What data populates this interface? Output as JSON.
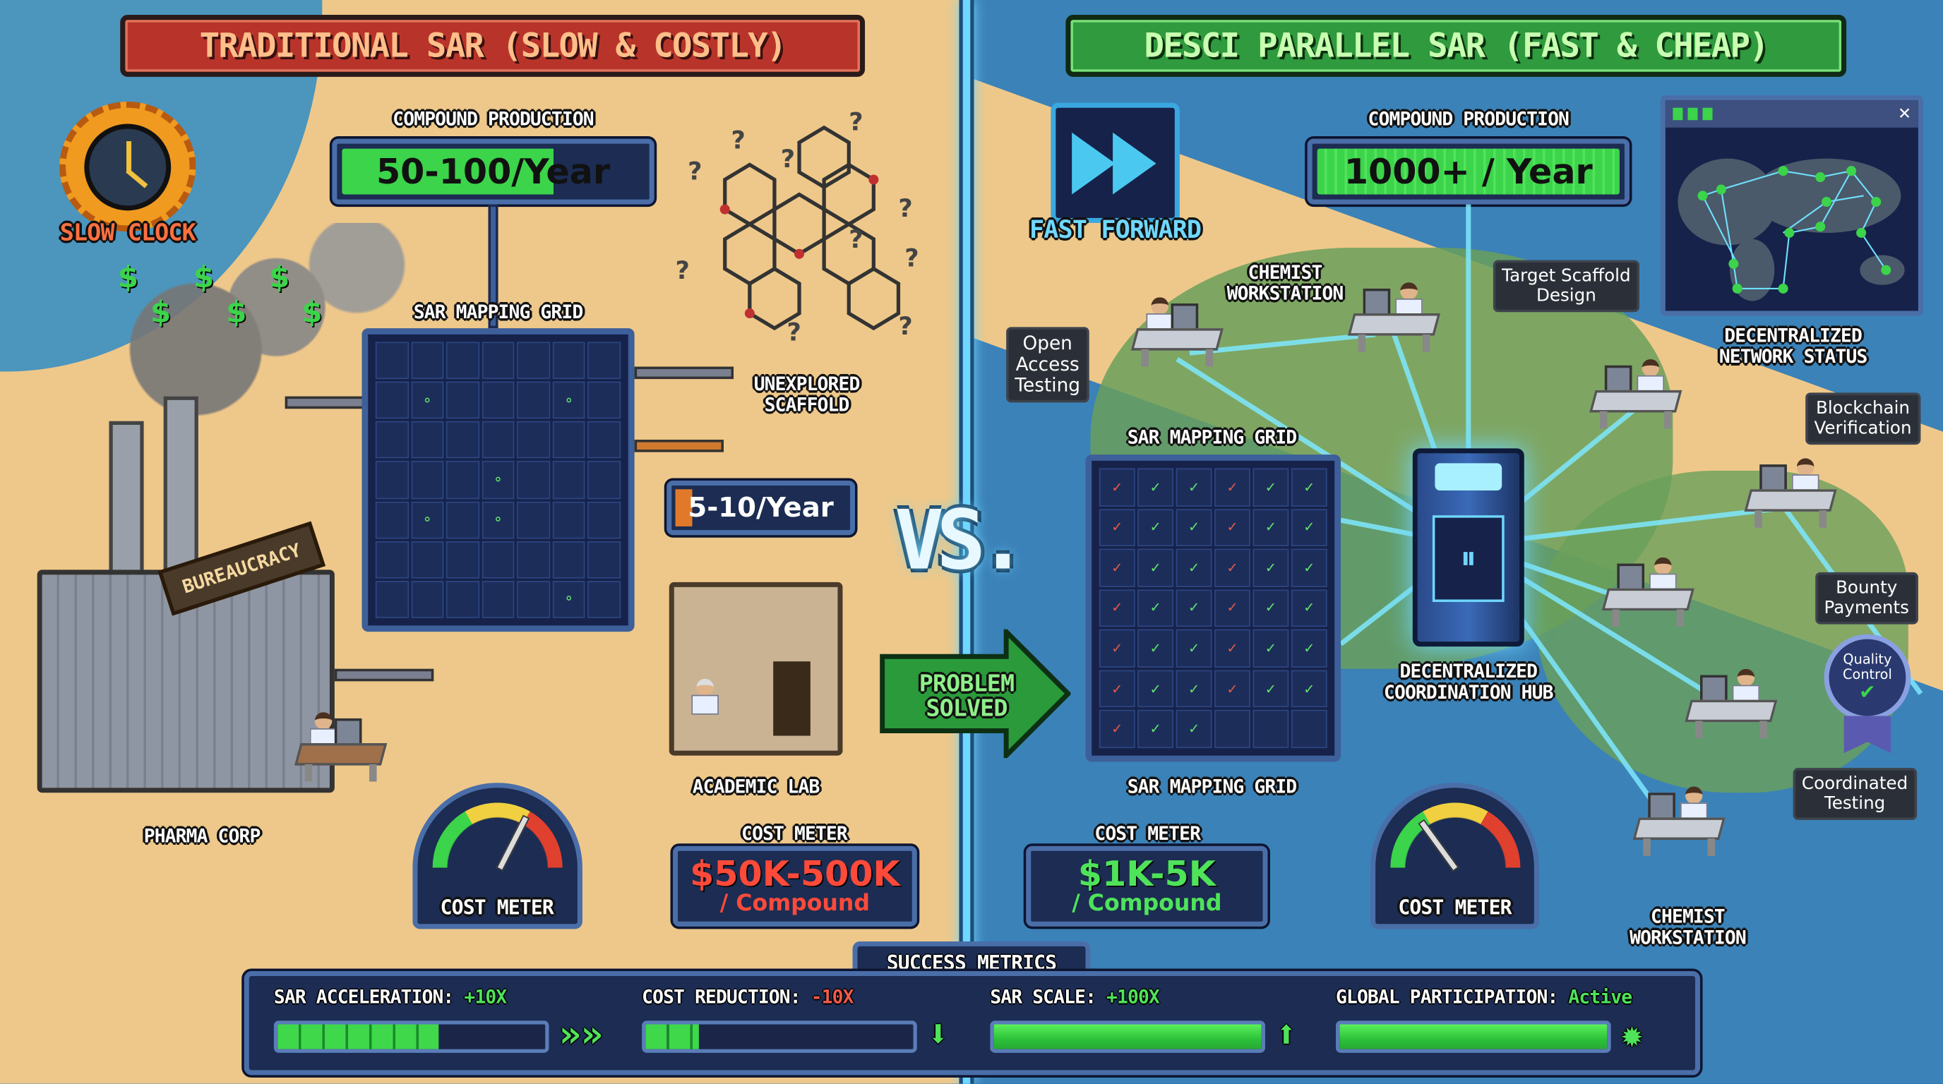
{
  "left": {
    "title": "TRADITIONAL SAR (SLOW & COSTLY)",
    "slow_clock": "SLOW CLOCK",
    "compound_production_label": "COMPOUND PRODUCTION",
    "compound_production_value": "50-100/Year",
    "sar_grid_label": "SAR MAPPING GRID",
    "unexplored_scaffold": "UNEXPLORED\nSCAFFOLD",
    "academic_rate": "5-10/Year",
    "academic_lab": "ACADEMIC LAB",
    "bureaucracy": "BUREAUCRACY",
    "pharma_corp": "PHARMA CORP",
    "gauge_label": "COST METER",
    "gauge_level": 0.65,
    "cost_meter_label": "COST METER",
    "cost_value": "$50K-500K",
    "cost_unit": "/ Compound"
  },
  "center": {
    "vs": "VS.",
    "problem_solved": "PROBLEM\nSOLVED"
  },
  "right": {
    "title": "DESCI PARALLEL SAR (FAST & CHEAP)",
    "fast_forward": "FAST FORWARD",
    "compound_production_label": "COMPOUND PRODUCTION",
    "compound_production_value": "1000+ / Year",
    "network_status": "DECENTRALIZED\nNETWORK STATUS",
    "chemist_workstation": "CHEMIST\nWORKSTATION",
    "target_scaffold": "Target Scaffold\nDesign",
    "open_access": "Open\nAccess\nTesting",
    "sar_grid_label": "SAR MAPPING GRID",
    "sar_grid_label_bottom": "SAR MAPPING GRID",
    "hub": "DECENTRALIZED\nCOORDINATION HUB",
    "blockchain": "Blockchain\nVerification",
    "bounty": "Bounty\nPayments",
    "quality": "Quality\nControl",
    "coordinated": "Coordinated\nTesting",
    "chemist_workstation_2": "CHEMIST\nWORKSTATION",
    "cost_meter_label": "COST METER",
    "cost_value": "$1K-5K",
    "cost_unit": "/ Compound",
    "gauge_label": "COST METER",
    "gauge_level": 0.3
  },
  "metrics": {
    "title": "SUCCESS METRICS",
    "items": [
      {
        "label": "SAR ACCELERATION:",
        "value": "+10X",
        "value_color": "#4fe35a",
        "fill": 0.6,
        "icon": "chevron-right-triple"
      },
      {
        "label": "COST REDUCTION:",
        "value": "-10X",
        "value_color": "#f05a4a",
        "fill": 0.2,
        "icon": "arrow-down"
      },
      {
        "label": "SAR SCALE:",
        "value": "+100X",
        "value_color": "#4fe35a",
        "fill": 1.0,
        "icon": "arrow-up"
      },
      {
        "label": "GLOBAL PARTICIPATION:",
        "value": "Active",
        "value_color": "#4fe35a",
        "fill": 1.0,
        "icon": "glow-sun"
      }
    ]
  },
  "colors": {
    "sand": "#eec88a",
    "water": "#3b82b8",
    "accent_green": "#3bd44a",
    "accent_red": "#e0402e",
    "divider": "#6fd6ff"
  }
}
